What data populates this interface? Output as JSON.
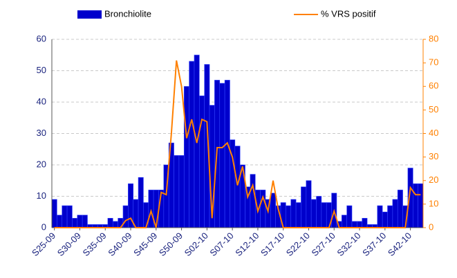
{
  "chart_data": {
    "type": "bar-line",
    "categories": [
      "S25-09",
      null,
      null,
      null,
      null,
      "S30-09",
      null,
      null,
      null,
      null,
      "S35-09",
      null,
      null,
      null,
      null,
      "S40-09",
      null,
      null,
      null,
      null,
      "S45-09",
      null,
      null,
      null,
      null,
      "S50-09",
      null,
      null,
      null,
      null,
      "S02-10",
      null,
      null,
      null,
      null,
      "S07-10",
      null,
      null,
      null,
      null,
      "S12-10",
      null,
      null,
      null,
      null,
      "S17-10",
      null,
      null,
      null,
      null,
      "S22-10",
      null,
      null,
      null,
      null,
      "S27-10",
      null,
      null,
      null,
      null,
      "S32-10",
      null,
      null,
      null,
      null,
      "S37-10",
      null,
      null,
      null,
      null,
      "S42-10",
      null,
      null
    ],
    "series": [
      {
        "name": "Bronchiolite",
        "color": "#0000cc",
        "axis": "y",
        "values": [
          9,
          4,
          7,
          7,
          3,
          4,
          4,
          1,
          1,
          1,
          1,
          3,
          2,
          3,
          7,
          14,
          9,
          16,
          8,
          12,
          12,
          12,
          20,
          27,
          23,
          23,
          45,
          53,
          55,
          42,
          52,
          39,
          47,
          46,
          47,
          28,
          26,
          20,
          13,
          17,
          12,
          12,
          9,
          11,
          7,
          8,
          7,
          9,
          8,
          13,
          15,
          9,
          10,
          8,
          8,
          11,
          2,
          4,
          7,
          2,
          2,
          3,
          1,
          1,
          7,
          5,
          7,
          9,
          12,
          7,
          19,
          14,
          14
        ]
      },
      {
        "name": "% VRS positif",
        "color": "#ff8000",
        "axis": "y2",
        "values": [
          0,
          0,
          0,
          0,
          0,
          0,
          0,
          0,
          0,
          0,
          0,
          0,
          0,
          0,
          3,
          4,
          0,
          0,
          0,
          7,
          0,
          15,
          14,
          40,
          71,
          60,
          38,
          46,
          36,
          46,
          45,
          4,
          34,
          34,
          36,
          30,
          18,
          26,
          13,
          18,
          7,
          13,
          7,
          20,
          8,
          0,
          0,
          0,
          0,
          0,
          0,
          0,
          0,
          0,
          0,
          7,
          0,
          0,
          0,
          0,
          0,
          0,
          0,
          0,
          0,
          0,
          0,
          0,
          0,
          0,
          17,
          14,
          14
        ]
      }
    ],
    "ylim": [
      0,
      60
    ],
    "yticks": [
      0,
      10,
      20,
      30,
      40,
      50,
      60
    ],
    "y2lim": [
      0,
      80
    ],
    "y2ticks": [
      0,
      10,
      20,
      30,
      40,
      50,
      60,
      70,
      80
    ],
    "grid": true,
    "legend": "top"
  }
}
